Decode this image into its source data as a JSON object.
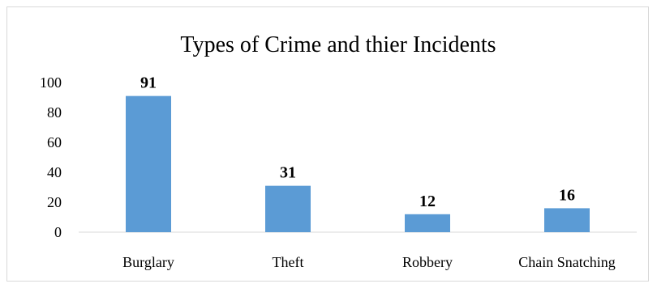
{
  "chart_data": {
    "type": "bar",
    "title": "Types of Crime and thier Incidents",
    "categories": [
      "Burglary",
      "Theft",
      "Robbery",
      "Chain Snatching"
    ],
    "values": [
      91,
      31,
      12,
      16
    ],
    "data_labels": [
      "91",
      "31",
      "12",
      "16"
    ],
    "y_ticks": [
      "0",
      "20",
      "40",
      "60",
      "80",
      "100"
    ],
    "ylim": [
      0,
      100
    ],
    "grid": false,
    "legend": "none",
    "bar_color": "#5b9bd5",
    "axis_color": "#d9d9d9"
  }
}
